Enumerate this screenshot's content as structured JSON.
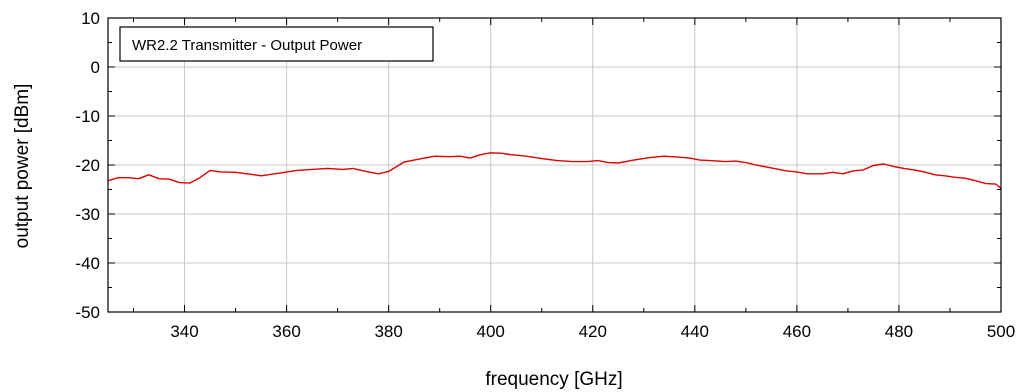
{
  "chart_data": {
    "type": "line",
    "title": "WR2.2 Transmitter - Output Power",
    "xlabel": "frequency [GHz]",
    "ylabel": "output power [dBm]",
    "xlim": [
      325,
      500
    ],
    "ylim": [
      -50,
      10
    ],
    "xticks": [
      340,
      360,
      380,
      400,
      420,
      440,
      460,
      480,
      500
    ],
    "yticks": [
      -50,
      -40,
      -30,
      -20,
      -10,
      0,
      10
    ],
    "xtick_labels": [
      "340",
      "360",
      "380",
      "400",
      "420",
      "440",
      "460",
      "480",
      "500"
    ],
    "ytick_labels": [
      "-50",
      "-40",
      "-30",
      "-20",
      "-10",
      "0",
      "10"
    ],
    "grid": true,
    "legend_position": "top-left",
    "series": [
      {
        "color": "#e00000",
        "x": [
          325,
          327,
          329,
          331,
          333,
          335,
          337,
          339,
          341,
          343,
          345,
          347,
          350,
          353,
          355,
          357,
          359,
          362,
          365,
          368,
          371,
          373,
          376,
          378,
          380,
          383,
          386,
          389,
          392,
          394,
          396,
          398,
          400,
          402,
          404,
          407,
          410,
          413,
          416,
          419,
          421,
          423,
          425,
          428,
          431,
          434,
          437,
          439,
          441,
          443,
          446,
          448,
          450,
          452,
          455,
          458,
          460,
          462,
          465,
          467,
          469,
          471,
          473,
          475,
          477,
          479,
          481,
          483,
          485,
          487,
          489,
          491,
          493,
          495,
          497,
          499,
          500
        ],
        "y": [
          -23.2,
          -22.6,
          -22.6,
          -22.8,
          -22.0,
          -22.8,
          -22.9,
          -23.6,
          -23.7,
          -22.6,
          -21.1,
          -21.4,
          -21.5,
          -21.9,
          -22.2,
          -21.9,
          -21.6,
          -21.1,
          -20.9,
          -20.7,
          -20.9,
          -20.7,
          -21.4,
          -21.8,
          -21.3,
          -19.4,
          -18.8,
          -18.2,
          -18.3,
          -18.2,
          -18.6,
          -17.9,
          -17.5,
          -17.6,
          -17.9,
          -18.2,
          -18.7,
          -19.1,
          -19.3,
          -19.3,
          -19.1,
          -19.5,
          -19.6,
          -19.0,
          -18.5,
          -18.2,
          -18.4,
          -18.6,
          -19.0,
          -19.1,
          -19.3,
          -19.2,
          -19.5,
          -20.0,
          -20.6,
          -21.2,
          -21.4,
          -21.8,
          -21.8,
          -21.5,
          -21.8,
          -21.2,
          -21.0,
          -20.1,
          -19.8,
          -20.3,
          -20.7,
          -21.0,
          -21.4,
          -22.0,
          -22.2,
          -22.5,
          -22.7,
          -23.2,
          -23.8,
          -23.9,
          -24.8
        ]
      }
    ]
  }
}
